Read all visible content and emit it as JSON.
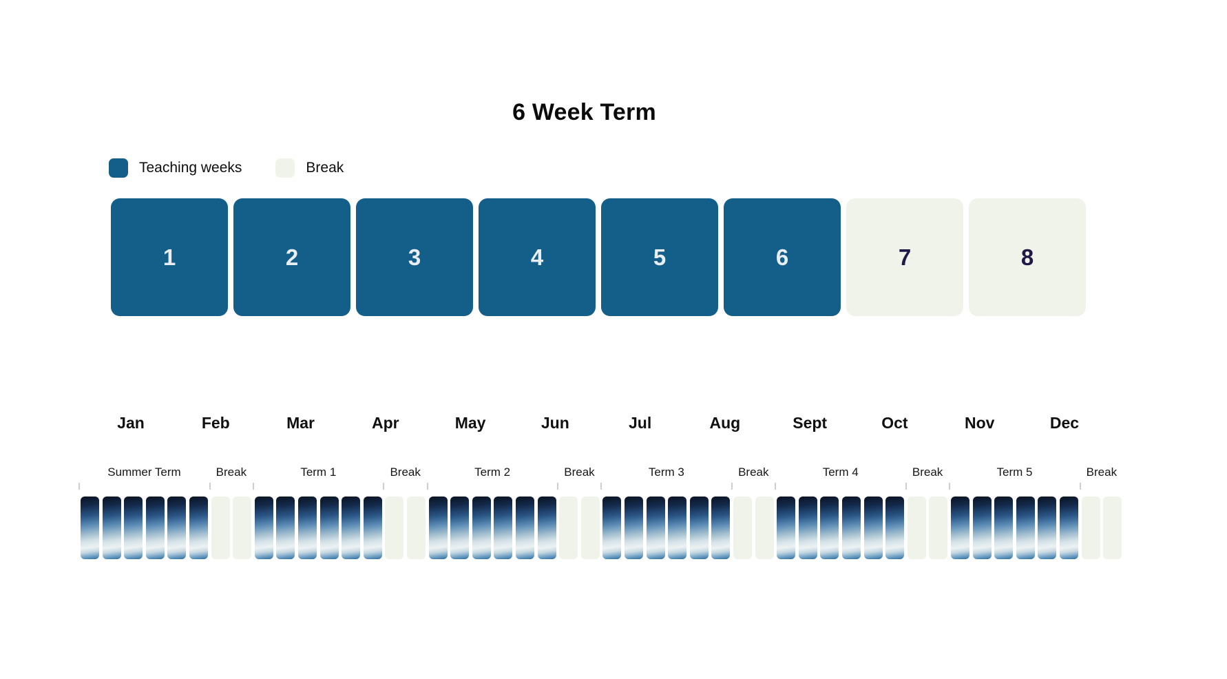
{
  "title": "6 Week Term",
  "legend": {
    "items": [
      {
        "label": "Teaching weeks",
        "type": "teaching"
      },
      {
        "label": "Break",
        "type": "break"
      }
    ]
  },
  "week_row": {
    "squares": [
      {
        "number": "1",
        "type": "teaching"
      },
      {
        "number": "2",
        "type": "teaching"
      },
      {
        "number": "3",
        "type": "teaching"
      },
      {
        "number": "4",
        "type": "teaching"
      },
      {
        "number": "5",
        "type": "teaching"
      },
      {
        "number": "6",
        "type": "teaching"
      },
      {
        "number": "7",
        "type": "break"
      },
      {
        "number": "8",
        "type": "break"
      }
    ]
  },
  "months": [
    "Jan",
    "Feb",
    "Mar",
    "Apr",
    "May",
    "Jun",
    "Jul",
    "Aug",
    "Sept",
    "Oct",
    "Nov",
    "Dec"
  ],
  "timeline_groups": [
    {
      "label": "Summer Term",
      "type": "teaching",
      "weeks": 6
    },
    {
      "label": "Break",
      "type": "break",
      "weeks": 2
    },
    {
      "label": "Term 1",
      "type": "teaching",
      "weeks": 6
    },
    {
      "label": "Break",
      "type": "break",
      "weeks": 2
    },
    {
      "label": "Term 2",
      "type": "teaching",
      "weeks": 6
    },
    {
      "label": "Break",
      "type": "break",
      "weeks": 2
    },
    {
      "label": "Term 3",
      "type": "teaching",
      "weeks": 6
    },
    {
      "label": "Break",
      "type": "break",
      "weeks": 2
    },
    {
      "label": "Term 4",
      "type": "teaching",
      "weeks": 6
    },
    {
      "label": "Break",
      "type": "break",
      "weeks": 2
    },
    {
      "label": "Term 5",
      "type": "teaching",
      "weeks": 6
    },
    {
      "label": "Break",
      "type": "break",
      "weeks": 2
    }
  ],
  "colors": {
    "teaching_blue": "#135F8A",
    "break_light": "#F0F3E9",
    "teaching_number": "#E8EEF1",
    "break_number": "#201847",
    "bar_gradient_top": "#0B1322",
    "bar_gradient_mid": "#2B5787",
    "bar_gradient_pale": "#EDF2F3",
    "bar_gradient_bottom": "#2E6C9E",
    "tick_gray": "#CCCFCC"
  },
  "chart_data": {
    "type": "bar",
    "title": "6 Week Term",
    "legend": [
      {
        "label": "Teaching weeks",
        "color": "#135F8A"
      },
      {
        "label": "Break",
        "color": "#F0F3E9"
      }
    ],
    "legend_position": "top-left",
    "week_cycle": {
      "categories": [
        "1",
        "2",
        "3",
        "4",
        "5",
        "6",
        "7",
        "8"
      ],
      "types": [
        "Teaching",
        "Teaching",
        "Teaching",
        "Teaching",
        "Teaching",
        "Teaching",
        "Break",
        "Break"
      ]
    },
    "year_timeline": {
      "months": [
        "Jan",
        "Feb",
        "Mar",
        "Apr",
        "May",
        "Jun",
        "Jul",
        "Aug",
        "Sept",
        "Oct",
        "Nov",
        "Dec"
      ],
      "groups": [
        {
          "label": "Summer Term",
          "type": "Teaching",
          "weeks": 6
        },
        {
          "label": "Break",
          "type": "Break",
          "weeks": 2
        },
        {
          "label": "Term 1",
          "type": "Teaching",
          "weeks": 6
        },
        {
          "label": "Break",
          "type": "Break",
          "weeks": 2
        },
        {
          "label": "Term 2",
          "type": "Teaching",
          "weeks": 6
        },
        {
          "label": "Break",
          "type": "Break",
          "weeks": 2
        },
        {
          "label": "Term 3",
          "type": "Teaching",
          "weeks": 6
        },
        {
          "label": "Break",
          "type": "Break",
          "weeks": 2
        },
        {
          "label": "Term 4",
          "type": "Teaching",
          "weeks": 6
        },
        {
          "label": "Break",
          "type": "Break",
          "weeks": 2
        },
        {
          "label": "Term 5",
          "type": "Teaching",
          "weeks": 6
        },
        {
          "label": "Break",
          "type": "Break",
          "weeks": 2
        }
      ],
      "total_weeks": 48,
      "grid": "off"
    }
  }
}
